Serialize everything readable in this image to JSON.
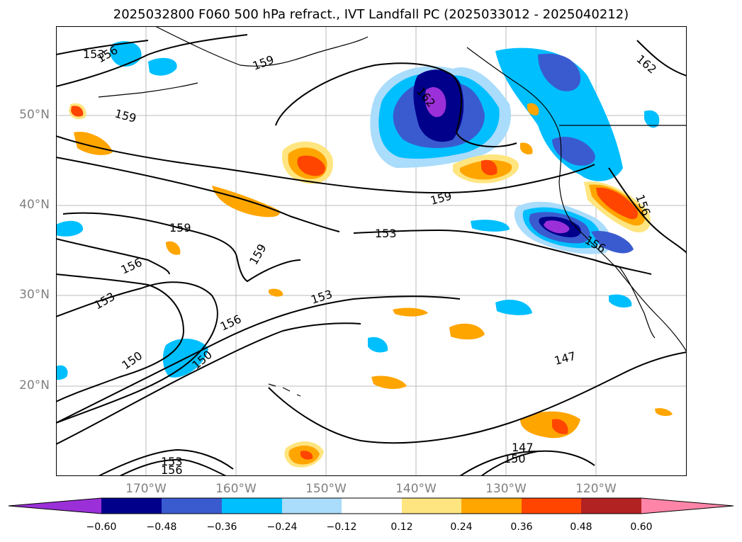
{
  "title": "2025032800 F060 500 hPa refract., IVT Landfall PC (2025033012 - 2025040212)",
  "map": {
    "lat_labels": [
      "50°N",
      "40°N",
      "30°N",
      "20°N"
    ],
    "lon_labels": [
      "170°W",
      "160°W",
      "150°W",
      "140°W",
      "130°W",
      "120°W"
    ],
    "contour_labels": [
      "153",
      "156",
      "159",
      "159",
      "162",
      "162",
      "159",
      "159",
      "159",
      "153",
      "156",
      "156",
      "153",
      "153",
      "156",
      "150",
      "150",
      "147",
      "147",
      "150",
      "153",
      "156",
      "156"
    ],
    "gridlines": true
  },
  "colorbar": {
    "ticks": [
      "−0.60",
      "−0.48",
      "−0.36",
      "−0.24",
      "−0.12",
      "0.12",
      "0.24",
      "0.36",
      "0.48",
      "0.60"
    ],
    "colors": [
      "#9b30d8",
      "#00008b",
      "#3a5bd0",
      "#00bfff",
      "#aadcfb",
      "#ffffff",
      "#ffe57f",
      "#ffa500",
      "#ff4500",
      "#b22222",
      "#ff85a8"
    ],
    "extend": "both"
  }
}
